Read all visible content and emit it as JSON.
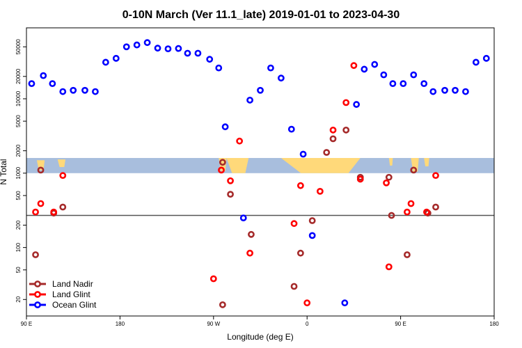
{
  "chart_data": {
    "type": "scatter",
    "title": "0-10N March (Ver 11.1_late)   2019-01-01 to 2023-04-30",
    "xlabel": "Longitude (deg E)",
    "ylabel": "N Total",
    "x_unit": "cumulative degrees east starting at 90 E",
    "xlim": [
      0,
      360
    ],
    "y_scale": "log",
    "ylim": [
      12,
      90000
    ],
    "x_ticks": [
      {
        "value": 0,
        "label": "90 E"
      },
      {
        "value": 72,
        "label": "180"
      },
      {
        "value": 144,
        "label": "90 W"
      },
      {
        "value": 216,
        "label": "0"
      },
      {
        "value": 288,
        "label": "90 E"
      },
      {
        "value": 360,
        "label": "180"
      }
    ],
    "y_ticks": [
      20,
      50,
      100,
      200,
      500,
      1000,
      2000,
      5000,
      10000,
      20000,
      50000
    ],
    "reference_line_y": 270,
    "map_strip": {
      "lat_range": "0-10N",
      "y_range": [
        1000,
        1600
      ],
      "ocean_color": "#a8bedd",
      "land_color": "#ffd97a"
    },
    "colors": {
      "land_nadir": "#a52a2a",
      "land_glint": "#ff0000",
      "ocean_glint": "#0000ff",
      "reference_line": "#555555"
    },
    "series": [
      {
        "name": "Land Nadir",
        "color_key": "land_nadir",
        "points": [
          [
            7,
            80
          ],
          [
            11,
            1100
          ],
          [
            21,
            290
          ],
          [
            28,
            350
          ],
          [
            151,
            1400
          ],
          [
            151,
            17
          ],
          [
            157,
            520
          ],
          [
            173,
            150
          ],
          [
            206,
            30
          ],
          [
            211,
            84
          ],
          [
            220,
            230
          ],
          [
            231,
            1900
          ],
          [
            236,
            2900
          ],
          [
            246,
            3800
          ],
          [
            257,
            880
          ],
          [
            279,
            880
          ],
          [
            281,
            270
          ],
          [
            293,
            80
          ],
          [
            298,
            1100
          ],
          [
            309,
            290
          ],
          [
            315,
            350
          ]
        ]
      },
      {
        "name": "Land Glint",
        "color_key": "land_glint",
        "points": [
          [
            7,
            300
          ],
          [
            11,
            390
          ],
          [
            21,
            300
          ],
          [
            28,
            930
          ],
          [
            144,
            38
          ],
          [
            150,
            1100
          ],
          [
            157,
            790
          ],
          [
            164,
            2700
          ],
          [
            172,
            84
          ],
          [
            206,
            210
          ],
          [
            211,
            680
          ],
          [
            216,
            18
          ],
          [
            226,
            570
          ],
          [
            236,
            3800
          ],
          [
            246,
            8900
          ],
          [
            252,
            28000
          ],
          [
            257,
            830
          ],
          [
            277,
            740
          ],
          [
            279,
            55
          ],
          [
            293,
            300
          ],
          [
            296,
            390
          ],
          [
            308,
            300
          ],
          [
            315,
            930
          ]
        ]
      },
      {
        "name": "Ocean Glint",
        "color_key": "ocean_glint",
        "points": [
          [
            4,
            16000
          ],
          [
            13,
            20500
          ],
          [
            20,
            16000
          ],
          [
            28,
            12500
          ],
          [
            36,
            13000
          ],
          [
            45,
            13000
          ],
          [
            53,
            12500
          ],
          [
            61,
            31000
          ],
          [
            69,
            35000
          ],
          [
            77,
            50000
          ],
          [
            85,
            53000
          ],
          [
            93,
            57000
          ],
          [
            101,
            48000
          ],
          [
            109,
            47000
          ],
          [
            117,
            47500
          ],
          [
            124,
            41000
          ],
          [
            132,
            41000
          ],
          [
            141,
            34000
          ],
          [
            148,
            26000
          ],
          [
            153,
            4200
          ],
          [
            167,
            250
          ],
          [
            172,
            9600
          ],
          [
            180,
            13000
          ],
          [
            188,
            26000
          ],
          [
            196,
            19000
          ],
          [
            204,
            3900
          ],
          [
            213,
            1800
          ],
          [
            220,
            145
          ],
          [
            245,
            18
          ],
          [
            254,
            8400
          ],
          [
            260,
            25000
          ],
          [
            268,
            29000
          ],
          [
            275,
            21000
          ],
          [
            282,
            16000
          ],
          [
            290,
            16000
          ],
          [
            298,
            21000
          ],
          [
            306,
            16000
          ],
          [
            313,
            12500
          ],
          [
            322,
            13000
          ],
          [
            330,
            13000
          ],
          [
            338,
            12500
          ],
          [
            346,
            31000
          ],
          [
            354,
            35000
          ]
        ]
      }
    ],
    "legend": {
      "position": "bottom-left",
      "entries": [
        "Land Nadir",
        "Land Glint",
        "Ocean Glint"
      ]
    }
  }
}
